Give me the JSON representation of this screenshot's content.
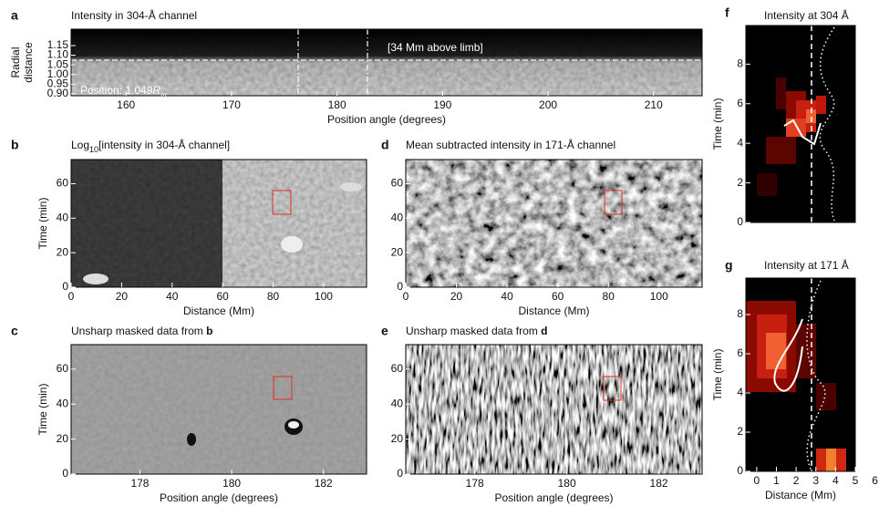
{
  "panels": [
    {
      "label": "a",
      "title": "Intensity in 304-Å channel",
      "xlabel": "Position angle (degrees)",
      "ylabel": [
        "Radial",
        "distance"
      ],
      "xlim": [
        154.8,
        214.6
      ],
      "ylim": [
        0.89,
        1.235
      ],
      "xticks": [
        160,
        170,
        180,
        190,
        200,
        210
      ],
      "yticks": [
        {
          "value": 0.9,
          "label": "0.90"
        },
        {
          "value": 0.95,
          "label": "0.95"
        },
        {
          "value": 1.0,
          "label": "1.00"
        },
        {
          "value": 1.05,
          "label": "1.05"
        },
        {
          "value": 1.1,
          "label": "1.10"
        },
        {
          "value": 1.15,
          "label": "1.15"
        }
      ],
      "annotation": "[34 Mm above limb]",
      "position_text": [
        "Position: 1.049",
        "R",
        "⊙"
      ]
    },
    {
      "label": "b",
      "title_parts": [
        "Log",
        "10",
        "[intensity in 304-Å channel]"
      ],
      "xlabel": "Distance (Mm)",
      "ylabel": [
        "Time (min)"
      ],
      "xlim": [
        0,
        117
      ],
      "ylim": [
        0,
        74
      ],
      "xticks": [
        0,
        20,
        40,
        60,
        80,
        100
      ],
      "yticks": [
        0,
        20,
        40,
        60
      ]
    },
    {
      "label": "c",
      "title_parts": [
        "Unsharp masked data from ",
        "b"
      ],
      "xlabel": "Position angle (degrees)",
      "ylabel": [
        "Time (min)"
      ],
      "xlim": [
        176.5,
        182.94
      ],
      "ylim": [
        0,
        74
      ],
      "xticks": [
        178,
        180,
        182
      ],
      "yticks": [
        0,
        20,
        40,
        60
      ]
    },
    {
      "label": "d",
      "title": "Mean subtracted intensity in 171-Å channel",
      "xlabel": "Distance (Mm)",
      "xlim": [
        0,
        117
      ],
      "ylim": [
        0,
        74
      ],
      "xticks": [
        0,
        20,
        40,
        60,
        80,
        100
      ],
      "yticks": [
        0,
        20,
        40,
        60
      ]
    },
    {
      "label": "e",
      "title_parts": [
        "Unsharp masked data from ",
        "d"
      ],
      "xlabel": "Position angle (degrees)",
      "xlim": [
        176.5,
        182.94
      ],
      "ylim": [
        0,
        74
      ],
      "xticks": [
        178,
        180,
        182
      ],
      "yticks": [
        0,
        20,
        40,
        60
      ]
    },
    {
      "label": "f",
      "title": "Intensity at 304 Å",
      "ylabel": [
        "Time (min)"
      ],
      "xlim": [
        -0.55,
        5.0
      ],
      "ylim": [
        0,
        9.95
      ],
      "yticks": [
        0,
        2,
        4,
        6,
        8
      ]
    },
    {
      "label": "g",
      "title": "Intensity at 171 Å",
      "xlabel": "Distance (Mm)",
      "ylabel": [
        "Time (min)"
      ],
      "xlim": [
        -0.55,
        5.0
      ],
      "ylim": [
        0,
        9.86
      ],
      "xticks": [
        0,
        1,
        2,
        3,
        4,
        5,
        6
      ],
      "yticks": [
        0,
        2,
        4,
        6,
        8
      ]
    }
  ]
}
